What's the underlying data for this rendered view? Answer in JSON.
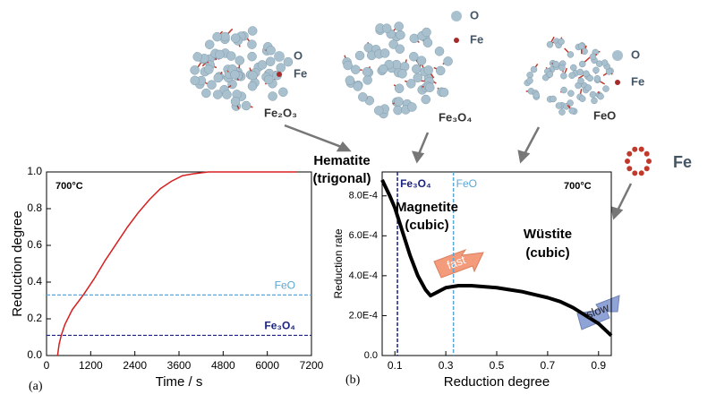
{
  "chart_data": [
    {
      "type": "line",
      "xlabel": "Time / s",
      "ylabel": "Reduction degree",
      "xlim": [
        0,
        7200
      ],
      "xticks": [
        0,
        1200,
        2400,
        3600,
        4800,
        6000,
        7200
      ],
      "ylim": [
        0,
        1
      ],
      "yticks": [
        {
          "value": 0,
          "label": "0.0"
        },
        0.2,
        0.4,
        0.6,
        0.8,
        {
          "value": 1,
          "label": "1.0"
        }
      ],
      "series": [
        {
          "color": "#d62020",
          "x": [
            300,
            340,
            400,
            500,
            700,
            1000,
            1300,
            1600,
            1900,
            2200,
            2500,
            2800,
            3100,
            3400,
            3700,
            4000,
            4400,
            5000,
            6000,
            6800
          ],
          "y": [
            0,
            0.06,
            0.11,
            0.17,
            0.25,
            0.33,
            0.42,
            0.52,
            0.61,
            0.7,
            0.78,
            0.85,
            0.91,
            0.95,
            0.98,
            0.99,
            1.0,
            1.0,
            1.0,
            1.0
          ]
        }
      ],
      "hlines": [
        {
          "value": 0.33,
          "label": "FeO",
          "color": "#5aa6d6"
        },
        {
          "value": 0.11,
          "label": "Fe₃O₄",
          "color": "#1a237e"
        }
      ],
      "annotations": [
        "700°C"
      ]
    },
    {
      "type": "line",
      "xlabel": "Reduction degree",
      "ylabel": "Reduction rate",
      "xlim": [
        0.05,
        0.95
      ],
      "xticks": [
        0.1,
        0.3,
        0.5,
        0.7,
        0.9
      ],
      "ylim": [
        0,
        0.00092
      ],
      "yticks": [
        {
          "value": 0,
          "label": "0.0"
        },
        {
          "value": 0.0002,
          "label": "2.0E-4"
        },
        {
          "value": 0.0004,
          "label": "4.0E-4"
        },
        {
          "value": 0.0006,
          "label": "6.0E-4"
        },
        {
          "value": 0.0008,
          "label": "8.0E-4"
        }
      ],
      "series": [
        {
          "color": "#000000",
          "x": [
            0.05,
            0.08,
            0.1,
            0.13,
            0.16,
            0.19,
            0.22,
            0.24,
            0.27,
            0.3,
            0.35,
            0.4,
            0.45,
            0.5,
            0.55,
            0.6,
            0.65,
            0.7,
            0.75,
            0.8,
            0.85,
            0.9,
            0.95
          ],
          "y": [
            0.00088,
            0.0008,
            0.00074,
            0.00062,
            0.0005,
            0.0004,
            0.00033,
            0.0003,
            0.00032,
            0.00034,
            0.00035,
            0.00035,
            0.000345,
            0.00034,
            0.00033,
            0.00032,
            0.000305,
            0.00029,
            0.00027,
            0.00024,
            0.0002,
            0.00016,
            0.0001
          ]
        }
      ],
      "vlines": [
        {
          "value": 0.11,
          "label": "Fe₃O₄",
          "color": "#1a237e"
        },
        {
          "value": 0.33,
          "label": "FeO",
          "color": "#5aa6d6"
        }
      ],
      "annotations": [
        "700°C",
        "Magnetite",
        "(cubic)",
        "Wüstite",
        "(cubic)",
        "fast",
        "slow"
      ]
    }
  ],
  "labels": {
    "panel_a": "(a)",
    "panel_b": "(b)",
    "hematite": "Hematite",
    "hematite_sub": "(trigonal)",
    "o": "O",
    "fe": "Fe",
    "fe2o3": "Fe₂O₃",
    "fe3o4": "Fe₃O₄",
    "feo": "FeO",
    "fe_atom": "Fe"
  }
}
